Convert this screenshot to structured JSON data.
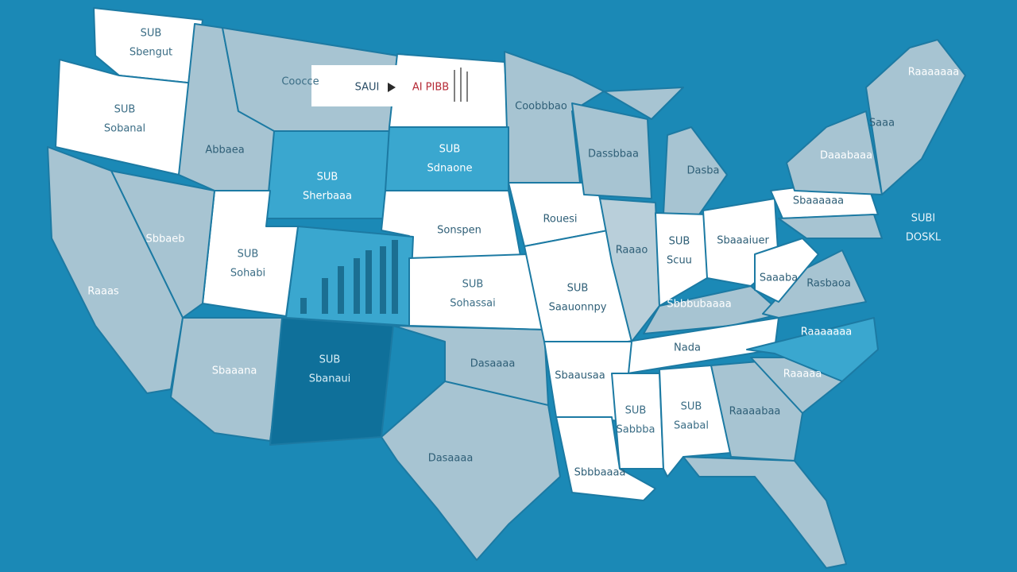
{
  "legend": {
    "left": "SAUI",
    "right": "AI PIBB"
  },
  "labels": [
    {
      "lines": [
        "SUB",
        "Sbengut"
      ]
    },
    {
      "lines": [
        "SUB",
        "Sobanal"
      ]
    },
    {
      "lines": [
        "Coocce"
      ]
    },
    {
      "lines": [
        "Abbaea"
      ]
    },
    {
      "lines": [
        "SUB",
        "Sherbaaa"
      ]
    },
    {
      "lines": [
        "SUB",
        "Sdnaone"
      ]
    },
    {
      "lines": [
        "Coobbbao"
      ]
    },
    {
      "lines": [
        "Dassbbaa"
      ]
    },
    {
      "lines": [
        "Dasba"
      ]
    },
    {
      "lines": [
        "Sbbaeb"
      ]
    },
    {
      "lines": [
        "SUB",
        "Sohabi"
      ]
    },
    {
      "lines": [
        "Sonspen"
      ]
    },
    {
      "lines": [
        "SUB",
        "Sohassai"
      ]
    },
    {
      "lines": [
        "Rouesi"
      ]
    },
    {
      "lines": [
        "SUB",
        "Saauonnpy"
      ]
    },
    {
      "lines": [
        "Raaao"
      ]
    },
    {
      "lines": [
        "SUB",
        "Scuu"
      ]
    },
    {
      "lines": [
        "Sbaaaiuer"
      ]
    },
    {
      "lines": [
        "Raaas"
      ]
    },
    {
      "lines": [
        "SUB",
        "Sbanaui"
      ]
    },
    {
      "lines": [
        "Sbaaana"
      ]
    },
    {
      "lines": [
        "Dasaaaa"
      ]
    },
    {
      "lines": [
        "Sbaausaa"
      ]
    },
    {
      "lines": [
        "Nada"
      ]
    },
    {
      "lines": [
        "Sbbbubaaaa"
      ]
    },
    {
      "lines": [
        "Dasaaaa"
      ]
    },
    {
      "lines": [
        "SUB",
        "Sabbba"
      ]
    },
    {
      "lines": [
        "SUB",
        "Saabal"
      ]
    },
    {
      "lines": [
        "Raaaabaa"
      ]
    },
    {
      "lines": [
        "Raaaaa"
      ]
    },
    {
      "lines": [
        "Raaaaaaa"
      ]
    },
    {
      "lines": [
        "Rasbaoa"
      ]
    },
    {
      "lines": [
        "Saaaba"
      ]
    },
    {
      "lines": [
        "Sbaaaaaa"
      ]
    },
    {
      "lines": [
        "Daaabaaa"
      ]
    },
    {
      "lines": [
        "Raaaaaaa"
      ]
    },
    {
      "lines": [
        "Saaa"
      ]
    },
    {
      "lines": [
        "SUBI",
        "DOSKL"
      ]
    },
    {
      "lines": [
        "Sbbbaaaa"
      ]
    }
  ]
}
